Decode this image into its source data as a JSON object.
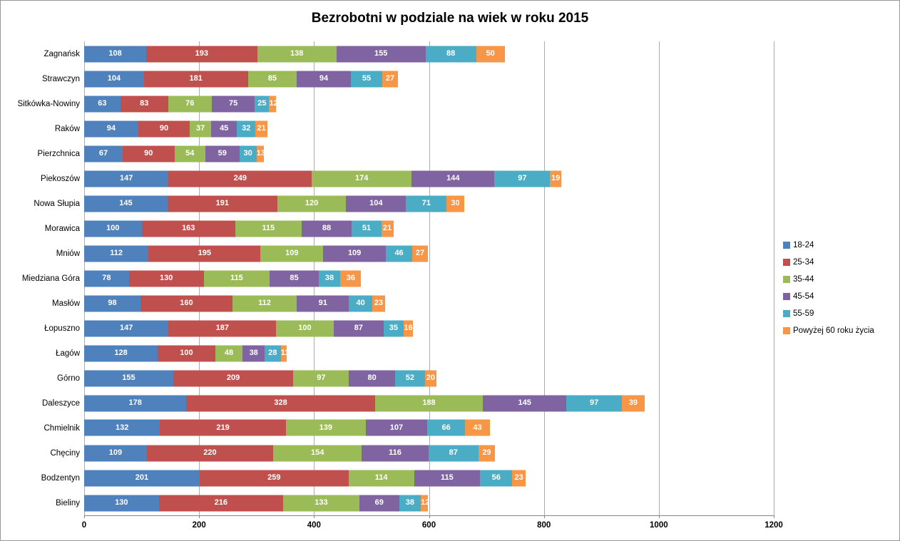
{
  "window": {
    "background": "#FFFFFF",
    "border_color": "#979797"
  },
  "chart_data": {
    "type": "bar",
    "orientation": "horizontal-stacked",
    "title": "Bezrobotni w podziale na wiek w roku 2015",
    "categories": [
      "Zagnańsk",
      "Strawczyn",
      "Sitkówka-Nowiny",
      "Raków",
      "Pierzchnica",
      "Piekoszów",
      "Nowa Słupia",
      "Morawica",
      "Mniów",
      "Miedziana Góra",
      "Masłów",
      "Łopuszno",
      "Łagów",
      "Górno",
      "Daleszyce",
      "Chmielnik",
      "Chęciny",
      "Bodzentyn",
      "Bieliny"
    ],
    "series": [
      {
        "name": "18-24",
        "color": "#4F81BD",
        "values": [
          108,
          104,
          63,
          94,
          67,
          147,
          145,
          100,
          112,
          78,
          98,
          147,
          128,
          155,
          178,
          132,
          109,
          201,
          130
        ]
      },
      {
        "name": "25-34",
        "color": "#C0504D",
        "values": [
          193,
          181,
          83,
          90,
          90,
          249,
          191,
          163,
          195,
          130,
          160,
          187,
          100,
          209,
          328,
          219,
          220,
          259,
          216
        ]
      },
      {
        "name": "35-44",
        "color": "#9BBB59",
        "values": [
          138,
          85,
          76,
          37,
          54,
          174,
          120,
          115,
          109,
          115,
          112,
          100,
          48,
          97,
          188,
          139,
          154,
          114,
          133
        ]
      },
      {
        "name": "45-54",
        "color": "#8064A2",
        "values": [
          155,
          94,
          75,
          45,
          59,
          144,
          104,
          88,
          109,
          85,
          91,
          87,
          38,
          80,
          145,
          107,
          116,
          115,
          69
        ]
      },
      {
        "name": "55-59",
        "color": "#4BACC6",
        "values": [
          88,
          55,
          25,
          32,
          30,
          97,
          71,
          51,
          46,
          38,
          40,
          35,
          28,
          52,
          97,
          66,
          87,
          56,
          38
        ]
      },
      {
        "name": "Powyżej 60 roku życia",
        "color": "#F79646",
        "values": [
          50,
          27,
          12,
          21,
          13,
          19,
          30,
          21,
          27,
          36,
          23,
          16,
          11,
          20,
          39,
          43,
          29,
          23,
          12
        ]
      }
    ],
    "x_ticks": [
      0,
      200,
      400,
      600,
      800,
      1000,
      1200
    ],
    "xlim": [
      0,
      1200
    ],
    "grid": true,
    "legend_position": "right",
    "bar_label_color": "#FFFFFF",
    "gridline_color": "#ABABAB",
    "axis_line_color": "#868686"
  }
}
